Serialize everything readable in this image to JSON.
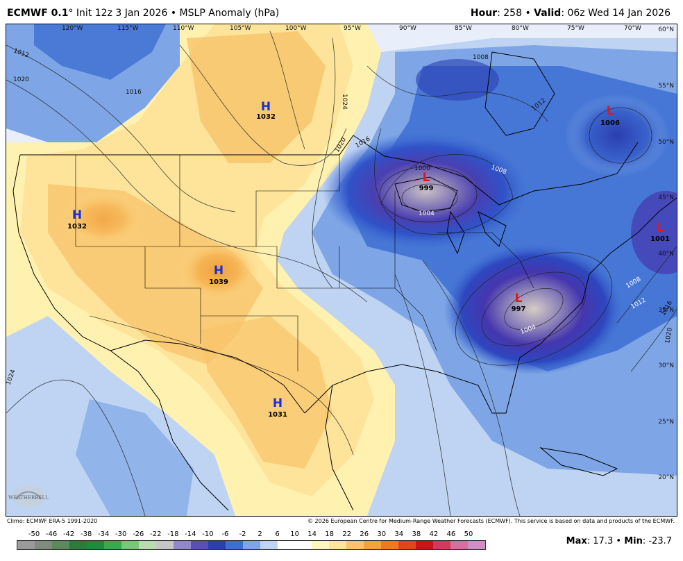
{
  "header": {
    "model": "ECMWF 0.1",
    "degree": "°",
    "init": "Init 12z 3 Jan 2026",
    "bullet": "•",
    "product": "MSLP Anomaly (hPa)",
    "hour_label": "Hour",
    "hour_value": "258",
    "valid_label": "Valid",
    "valid_value": "06z Wed 14 Jan 2026"
  },
  "map": {
    "lon_labels": [
      "120°W",
      "115°W",
      "110°W",
      "105°W",
      "100°W",
      "95°W",
      "90°W",
      "85°W",
      "80°W",
      "75°W",
      "70°W"
    ],
    "lat_labels": [
      "60°N",
      "55°N",
      "50°N",
      "45°N",
      "40°N",
      "35°N",
      "30°N",
      "25°N",
      "20°N"
    ],
    "highs": [
      {
        "symbol": "H",
        "value": "1032",
        "region": "central Canada"
      },
      {
        "symbol": "H",
        "value": "1032",
        "region": "Great Basin"
      },
      {
        "symbol": "H",
        "value": "1039",
        "region": "Colorado"
      },
      {
        "symbol": "H",
        "value": "1031",
        "region": "northern Mexico"
      }
    ],
    "lows": [
      {
        "symbol": "L",
        "value": "999",
        "region": "Lake Superior"
      },
      {
        "symbol": "L",
        "value": "997",
        "region": "North Carolina"
      },
      {
        "symbol": "L",
        "value": "1006",
        "region": "Hudson Bay"
      },
      {
        "symbol": "L",
        "value": "1001",
        "region": "Maine coast"
      }
    ],
    "isobar_labels": [
      "1008",
      "1012",
      "1016",
      "1020",
      "1024",
      "1004",
      "1000",
      "1008",
      "1012",
      "1016",
      "1020",
      "1024",
      "1004",
      "1016",
      "1008",
      "1012",
      "1020"
    ],
    "colors": {
      "positive": "#f8c36a",
      "negative": "#3a55c8",
      "ocean": "#eaf0fb"
    },
    "logo_text": "WEATHERBELL"
  },
  "credits": {
    "climo": "Climo: ECMWF ERA-5 1991-2020",
    "copyright": "© 2026 European Centre for Medium-Range Weather Forecasts (ECMWF). This service is based on data and products of the ECMWF."
  },
  "colorbar": {
    "ticks": [
      "-50",
      "-46",
      "-42",
      "-38",
      "-34",
      "-30",
      "-26",
      "-22",
      "-18",
      "-14",
      "-10",
      "-6",
      "-2",
      "2",
      "6",
      "10",
      "14",
      "18",
      "22",
      "26",
      "30",
      "34",
      "38",
      "42",
      "46",
      "50"
    ],
    "colors": [
      "#9a9a9a",
      "#7e8c7e",
      "#5d8a5d",
      "#2f7a3a",
      "#1f8a3c",
      "#3aa84e",
      "#79c57a",
      "#b7dcb0",
      "#c6c6c6",
      "#9088c7",
      "#5a4fb8",
      "#2b3fb0",
      "#3d6fd2",
      "#7ea6e6",
      "#bfd4f3",
      "#ffffff",
      "#ffffff",
      "#fff5bf",
      "#fde49a",
      "#f8c36a",
      "#f4a23c",
      "#ef7a1e",
      "#e1461a",
      "#c8141a",
      "#d13a5c",
      "#d76ea0",
      "#cf8ec4"
    ],
    "max_label": "Max",
    "max_value": "17.3",
    "min_label": "Min",
    "min_value": "-23.7"
  }
}
